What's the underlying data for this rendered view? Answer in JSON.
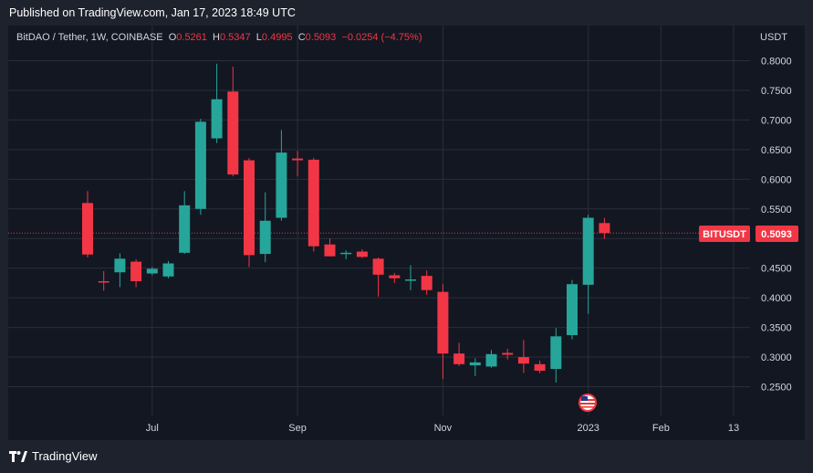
{
  "header": {
    "published": "Published on TradingView.com, Jan 17, 2023 18:49 UTC"
  },
  "legend": {
    "symbol": "BitDAO / Tether, 1W, COINBASE",
    "o_label": "O",
    "o_value": "0.5261",
    "h_label": "H",
    "h_value": "0.5347",
    "l_label": "L",
    "l_value": "0.4995",
    "c_label": "C",
    "c_value": "0.5093",
    "change": "−0.0254 (−4.75%)"
  },
  "axis": {
    "currency": "USDT"
  },
  "price_badge": {
    "ticker": "BITUSDT",
    "value": "0.5093"
  },
  "footer": {
    "brand": "TradingView"
  },
  "colors": {
    "up": "#26a69a",
    "down": "#f23645",
    "grid": "#2a2e39",
    "background": "#131722"
  },
  "chart_data": {
    "type": "candlestick",
    "timeframe": "1W",
    "ylim": [
      0.22,
      0.83
    ],
    "yticks": [
      0.25,
      0.3,
      0.35,
      0.4,
      0.45,
      0.5,
      0.55,
      0.6,
      0.65,
      0.7,
      0.75,
      0.8
    ],
    "ytick_labels": [
      "0.2500",
      "0.3000",
      "0.3500",
      "0.4000",
      "0.4500",
      "0.5000",
      "0.5500",
      "0.6000",
      "0.6500",
      "0.7000",
      "0.7500",
      "0.8000"
    ],
    "xtick_labels": [
      {
        "label": "Jul",
        "index": 4
      },
      {
        "label": "Sep",
        "index": 13
      },
      {
        "label": "Nov",
        "index": 22
      },
      {
        "label": "2023",
        "index": 31
      },
      {
        "label": "Feb",
        "index": 35.5
      },
      {
        "label": "13",
        "index": 40
      }
    ],
    "last_price": 0.5093,
    "candles": [
      {
        "o": 0.56,
        "h": 0.58,
        "l": 0.468,
        "c": 0.473
      },
      {
        "o": 0.428,
        "h": 0.445,
        "l": 0.412,
        "c": 0.426
      },
      {
        "o": 0.443,
        "h": 0.475,
        "l": 0.418,
        "c": 0.466
      },
      {
        "o": 0.461,
        "h": 0.465,
        "l": 0.418,
        "c": 0.428
      },
      {
        "o": 0.441,
        "h": 0.452,
        "l": 0.438,
        "c": 0.449
      },
      {
        "o": 0.436,
        "h": 0.462,
        "l": 0.433,
        "c": 0.458
      },
      {
        "o": 0.476,
        "h": 0.58,
        "l": 0.474,
        "c": 0.556
      },
      {
        "o": 0.55,
        "h": 0.702,
        "l": 0.54,
        "c": 0.697
      },
      {
        "o": 0.669,
        "h": 0.795,
        "l": 0.661,
        "c": 0.735
      },
      {
        "o": 0.748,
        "h": 0.79,
        "l": 0.605,
        "c": 0.608
      },
      {
        "o": 0.632,
        "h": 0.636,
        "l": 0.452,
        "c": 0.472
      },
      {
        "o": 0.474,
        "h": 0.578,
        "l": 0.46,
        "c": 0.53
      },
      {
        "o": 0.535,
        "h": 0.683,
        "l": 0.53,
        "c": 0.645
      },
      {
        "o": 0.635,
        "h": 0.648,
        "l": 0.605,
        "c": 0.632
      },
      {
        "o": 0.633,
        "h": 0.636,
        "l": 0.478,
        "c": 0.487
      },
      {
        "o": 0.49,
        "h": 0.5,
        "l": 0.47,
        "c": 0.47
      },
      {
        "o": 0.474,
        "h": 0.48,
        "l": 0.465,
        "c": 0.476
      },
      {
        "o": 0.478,
        "h": 0.482,
        "l": 0.467,
        "c": 0.469
      },
      {
        "o": 0.466,
        "h": 0.468,
        "l": 0.402,
        "c": 0.439
      },
      {
        "o": 0.438,
        "h": 0.442,
        "l": 0.425,
        "c": 0.433
      },
      {
        "o": 0.429,
        "h": 0.455,
        "l": 0.413,
        "c": 0.431
      },
      {
        "o": 0.437,
        "h": 0.446,
        "l": 0.405,
        "c": 0.413
      },
      {
        "o": 0.41,
        "h": 0.423,
        "l": 0.263,
        "c": 0.306
      },
      {
        "o": 0.306,
        "h": 0.324,
        "l": 0.285,
        "c": 0.288
      },
      {
        "o": 0.286,
        "h": 0.298,
        "l": 0.268,
        "c": 0.291
      },
      {
        "o": 0.284,
        "h": 0.312,
        "l": 0.282,
        "c": 0.305
      },
      {
        "o": 0.307,
        "h": 0.314,
        "l": 0.296,
        "c": 0.304
      },
      {
        "o": 0.3,
        "h": 0.329,
        "l": 0.273,
        "c": 0.289
      },
      {
        "o": 0.288,
        "h": 0.294,
        "l": 0.273,
        "c": 0.277
      },
      {
        "o": 0.28,
        "h": 0.349,
        "l": 0.257,
        "c": 0.335
      },
      {
        "o": 0.337,
        "h": 0.43,
        "l": 0.33,
        "c": 0.423
      },
      {
        "o": 0.422,
        "h": 0.54,
        "l": 0.373,
        "c": 0.535
      },
      {
        "o": 0.5261,
        "h": 0.5347,
        "l": 0.4995,
        "c": 0.5093
      }
    ]
  }
}
